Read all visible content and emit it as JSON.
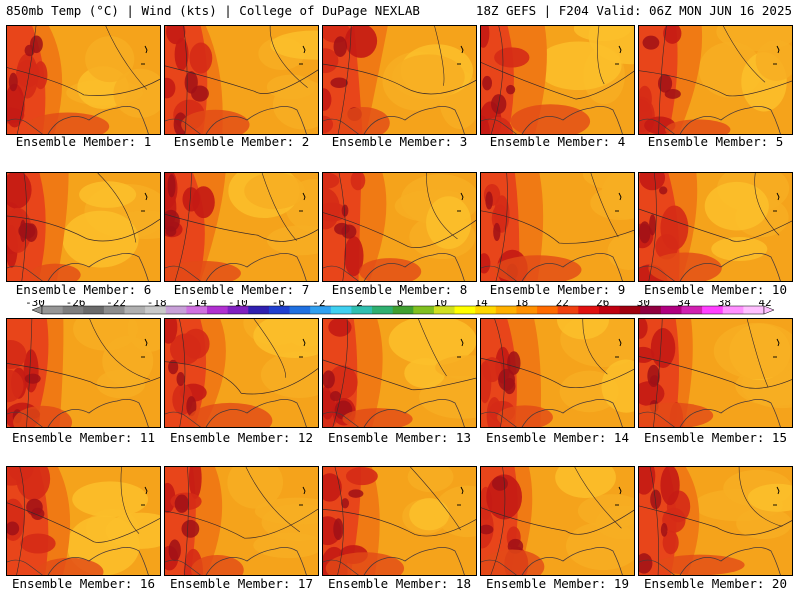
{
  "header": {
    "left": "850mb Temp (°C) | Wind (kts) | College of DuPage NEXLAB",
    "right": "18Z GEFS | F204 Valid: 06Z MON JUN 16 2025"
  },
  "panel_label_prefix": "Ensemble Member: ",
  "members": [
    1,
    2,
    3,
    4,
    5,
    6,
    7,
    8,
    9,
    10,
    11,
    12,
    13,
    14,
    15,
    16,
    17,
    18,
    19,
    20
  ],
  "colorbar": {
    "ticks": [
      "-30",
      "-26",
      "-22",
      "-18",
      "-14",
      "-10",
      "-6",
      "-2",
      "2",
      "6",
      "10",
      "14",
      "18",
      "22",
      "26",
      "30",
      "34",
      "38",
      "42"
    ],
    "colors": [
      "#969696",
      "#7e7e7e",
      "#6a6a6a",
      "#8c8c8c",
      "#b0b0b0",
      "#c9c9c9",
      "#c8a0d8",
      "#d070e0",
      "#b030d0",
      "#8020c0",
      "#3020b0",
      "#2040d0",
      "#2070e0",
      "#30a0f0",
      "#40d0f0",
      "#30c0b0",
      "#30b070",
      "#40a030",
      "#80c020",
      "#d0e020",
      "#ffff00",
      "#ffd700",
      "#ffb000",
      "#ff9000",
      "#ff6a00",
      "#f04010",
      "#e01010",
      "#c00010",
      "#a00010",
      "#900040",
      "#b00080",
      "#d020b0",
      "#ff40ff",
      "#ff90ff",
      "#ffc0ff"
    ]
  }
}
